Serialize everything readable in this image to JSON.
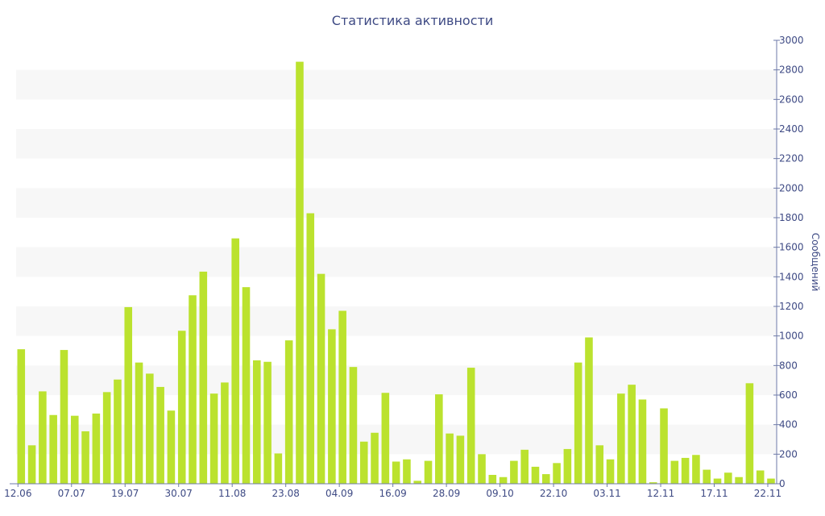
{
  "chart_data": {
    "type": "bar",
    "title": "Статистика активности",
    "ylabel": "Сообщений",
    "xlabel": "",
    "ylim": [
      0,
      3000
    ],
    "y_ticks": [
      0,
      200,
      400,
      600,
      800,
      1000,
      1200,
      1400,
      1600,
      1800,
      2000,
      2200,
      2400,
      2600,
      2800,
      3000
    ],
    "y_axis_side": "right",
    "grid": "alternating bands",
    "x_tick_labels": [
      {
        "index": 0,
        "label": "12.06"
      },
      {
        "index": 5,
        "label": "07.07"
      },
      {
        "index": 10,
        "label": "19.07"
      },
      {
        "index": 15,
        "label": "30.07"
      },
      {
        "index": 20,
        "label": "11.08"
      },
      {
        "index": 25,
        "label": "23.08"
      },
      {
        "index": 30,
        "label": "04.09"
      },
      {
        "index": 35,
        "label": "16.09"
      },
      {
        "index": 40,
        "label": "28.09"
      },
      {
        "index": 45,
        "label": "09.10"
      },
      {
        "index": 50,
        "label": "22.10"
      },
      {
        "index": 55,
        "label": "03.11"
      },
      {
        "index": 60,
        "label": "12.11"
      },
      {
        "index": 65,
        "label": "17.11"
      },
      {
        "index": 70,
        "label": "22.11"
      }
    ],
    "values": [
      910,
      260,
      625,
      465,
      905,
      460,
      355,
      475,
      620,
      705,
      1195,
      820,
      745,
      655,
      495,
      1035,
      1275,
      1435,
      610,
      685,
      1660,
      1330,
      835,
      825,
      205,
      970,
      2855,
      1830,
      1420,
      1045,
      1170,
      790,
      285,
      345,
      615,
      150,
      165,
      20,
      155,
      605,
      340,
      325,
      785,
      200,
      60,
      45,
      155,
      230,
      115,
      65,
      140,
      235,
      820,
      990,
      260,
      165,
      610,
      670,
      570,
      10,
      510,
      155,
      175,
      195,
      95,
      35,
      75,
      45,
      680,
      90,
      35
    ],
    "bar_color": "#bbe22e",
    "text_color": "#3e4a84"
  }
}
